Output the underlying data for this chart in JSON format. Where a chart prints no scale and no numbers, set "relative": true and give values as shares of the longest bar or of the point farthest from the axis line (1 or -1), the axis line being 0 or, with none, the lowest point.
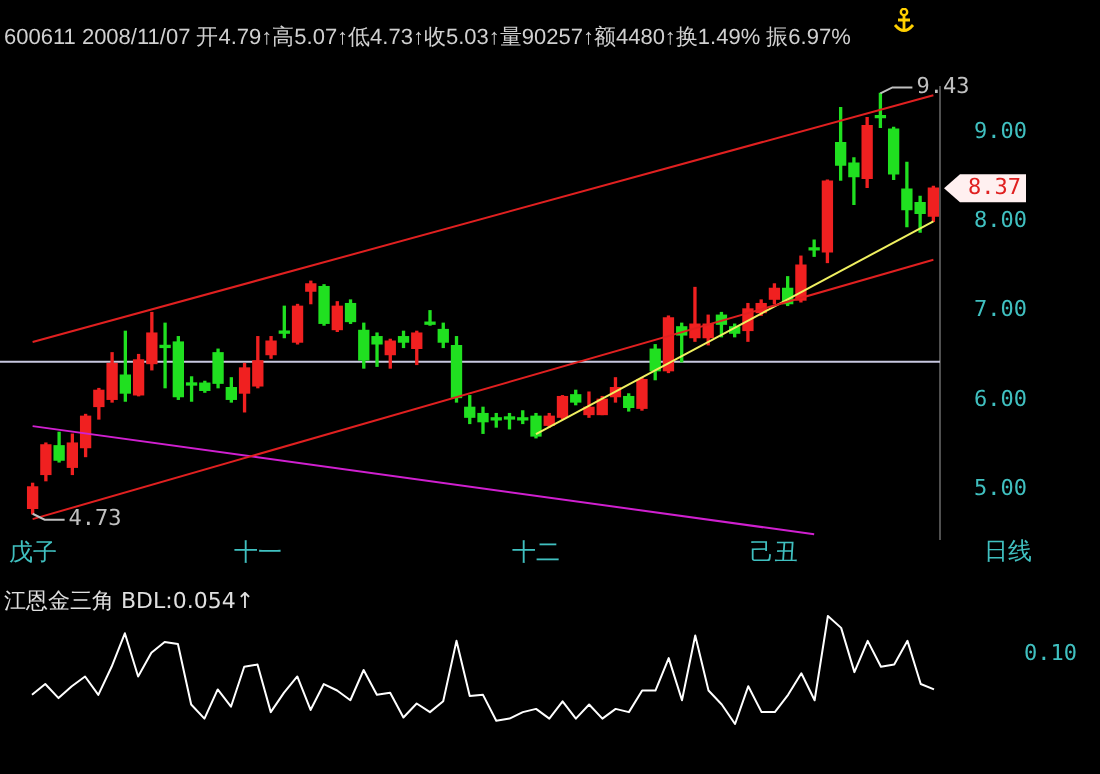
{
  "chart_data": [
    {
      "type": "candlestick",
      "subtitle": "600611 2008/11/07 开4.79↑高5.07↑低4.73↑收5.03↑量90257↑额4480↑换1.49% 振6.97%",
      "categories": [
        "戊子",
        null,
        null,
        null,
        null,
        null,
        null,
        null,
        null,
        null,
        null,
        null,
        null,
        null,
        null,
        null,
        null,
        "十一",
        null,
        null,
        null,
        null,
        null,
        null,
        null,
        null,
        null,
        null,
        null,
        null,
        null,
        null,
        null,
        null,
        null,
        null,
        null,
        null,
        "十二",
        null,
        null,
        null,
        null,
        null,
        null,
        null,
        null,
        null,
        null,
        null,
        null,
        null,
        null,
        null,
        null,
        null,
        "己丑",
        null,
        null,
        null,
        null,
        null,
        null,
        null,
        null,
        null,
        null,
        null,
        null
      ],
      "ohlc": [
        [
          4.79,
          5.07,
          4.73,
          5.03
        ],
        [
          5.17,
          5.52,
          5.1,
          5.5
        ],
        [
          5.49,
          5.64,
          5.31,
          5.33
        ],
        [
          5.25,
          5.62,
          5.17,
          5.52
        ],
        [
          5.47,
          5.84,
          5.37,
          5.82
        ],
        [
          5.93,
          6.13,
          5.79,
          6.11
        ],
        [
          6.01,
          6.53,
          5.98,
          6.41
        ],
        [
          6.28,
          6.77,
          5.99,
          6.08
        ],
        [
          6.06,
          6.51,
          6.05,
          6.45
        ],
        [
          6.41,
          6.98,
          6.34,
          6.75
        ],
        [
          6.61,
          6.86,
          6.14,
          6.59
        ],
        [
          6.65,
          6.71,
          6.01,
          6.04
        ],
        [
          6.19,
          6.26,
          5.99,
          6.17
        ],
        [
          6.19,
          6.21,
          6.09,
          6.11
        ],
        [
          6.53,
          6.57,
          6.14,
          6.19
        ],
        [
          6.14,
          6.25,
          5.98,
          6.01
        ],
        [
          6.08,
          6.41,
          5.87,
          6.36
        ],
        [
          6.16,
          6.71,
          6.14,
          6.44
        ],
        [
          6.51,
          6.71,
          6.47,
          6.66
        ],
        [
          6.77,
          7.05,
          6.7,
          6.75
        ],
        [
          6.65,
          7.07,
          6.63,
          7.05
        ],
        [
          7.22,
          7.33,
          7.08,
          7.3
        ],
        [
          7.27,
          7.29,
          6.84,
          6.86
        ],
        [
          6.79,
          7.1,
          6.77,
          7.05
        ],
        [
          7.08,
          7.12,
          6.86,
          6.88
        ],
        [
          6.78,
          6.86,
          6.36,
          6.45
        ],
        [
          6.71,
          6.75,
          6.38,
          6.63
        ],
        [
          6.51,
          6.68,
          6.36,
          6.66
        ],
        [
          6.71,
          6.77,
          6.59,
          6.65
        ],
        [
          6.58,
          6.77,
          6.4,
          6.75
        ],
        [
          6.87,
          7.0,
          6.84,
          6.85
        ],
        [
          6.79,
          6.86,
          6.59,
          6.65
        ],
        [
          6.61,
          6.71,
          5.98,
          6.03
        ],
        [
          5.92,
          6.05,
          5.74,
          5.81
        ],
        [
          5.85,
          5.92,
          5.63,
          5.76
        ],
        [
          5.8,
          5.85,
          5.7,
          5.78
        ],
        [
          5.81,
          5.85,
          5.68,
          5.79
        ],
        [
          5.8,
          5.88,
          5.74,
          5.78
        ],
        [
          5.82,
          5.85,
          5.58,
          5.6
        ],
        [
          5.72,
          5.85,
          5.7,
          5.82
        ],
        [
          5.81,
          6.05,
          5.79,
          6.04
        ],
        [
          6.06,
          6.11,
          5.95,
          5.98
        ],
        [
          5.84,
          6.09,
          5.81,
          5.92
        ],
        [
          5.84,
          6.04,
          5.84,
          6.01
        ],
        [
          6.04,
          6.25,
          5.98,
          6.14
        ],
        [
          6.04,
          6.07,
          5.88,
          5.92
        ],
        [
          5.91,
          6.25,
          5.89,
          6.23
        ],
        [
          6.57,
          6.62,
          6.23,
          6.33
        ],
        [
          6.33,
          6.94,
          6.31,
          6.92
        ],
        [
          6.82,
          6.86,
          6.43,
          6.73
        ],
        [
          6.7,
          7.26,
          6.66,
          6.85
        ],
        [
          6.7,
          6.95,
          6.62,
          6.85
        ],
        [
          6.95,
          6.98,
          6.71,
          6.85
        ],
        [
          6.82,
          6.85,
          6.71,
          6.75
        ],
        [
          6.78,
          7.08,
          6.66,
          7.02
        ],
        [
          6.98,
          7.12,
          6.95,
          7.08
        ],
        [
          7.13,
          7.3,
          7.08,
          7.25
        ],
        [
          7.25,
          7.38,
          7.06,
          7.08
        ],
        [
          7.12,
          7.61,
          7.1,
          7.51
        ],
        [
          7.7,
          7.79,
          7.61,
          7.68
        ],
        [
          7.66,
          8.46,
          7.54,
          8.45
        ],
        [
          8.88,
          9.27,
          8.46,
          8.63
        ],
        [
          8.65,
          8.71,
          8.19,
          8.5
        ],
        [
          8.48,
          9.16,
          8.38,
          9.07
        ],
        [
          9.18,
          9.43,
          9.05,
          9.16
        ],
        [
          9.03,
          9.05,
          8.47,
          8.53
        ],
        [
          8.36,
          8.66,
          7.94,
          8.13
        ],
        [
          8.21,
          8.28,
          7.88,
          8.09
        ],
        [
          8.06,
          8.39,
          8.0,
          8.37
        ]
      ],
      "colors": [
        "#f02020",
        "#f02020",
        "#20e020",
        "#f02020",
        "#f02020",
        "#f02020",
        "#f02020",
        "#20e020",
        "#f02020",
        "#f02020",
        "#20e020",
        "#20e020",
        "#20e020",
        "#20e020",
        "#20e020",
        "#20e020",
        "#f02020",
        "#f02020",
        "#f02020",
        "#20e020",
        "#f02020",
        "#f02020",
        "#20e020",
        "#f02020",
        "#20e020",
        "#20e020",
        "#20e020",
        "#f02020",
        "#20e020",
        "#f02020",
        "#20e020",
        "#20e020",
        "#20e020",
        "#20e020",
        "#20e020",
        "#20e020",
        "#20e020",
        "#20e020",
        "#20e020",
        "#f02020",
        "#f02020",
        "#20e020",
        "#f02020",
        "#f02020",
        "#f02020",
        "#20e020",
        "#f02020",
        "#20e020",
        "#f02020",
        "#20e020",
        "#f02020",
        "#f02020",
        "#20e020",
        "#20e020",
        "#f02020",
        "#f02020",
        "#f02020",
        "#20e020",
        "#f02020",
        "#20e020",
        "#f02020",
        "#20e020",
        "#20e020",
        "#f02020",
        "#20e020",
        "#20e020",
        "#20e020",
        "#20e020",
        "#f02020"
      ],
      "series": [
        {
          "type": "line",
          "color": "#e02020",
          "values": [
            6.65,
            null,
            null,
            null,
            null,
            null,
            null,
            null,
            null,
            null,
            null,
            null,
            null,
            null,
            null,
            null,
            null,
            null,
            null,
            null,
            null,
            null,
            null,
            null,
            null,
            null,
            null,
            null,
            null,
            null,
            null,
            null,
            null,
            null,
            null,
            null,
            null,
            null,
            null,
            null,
            null,
            null,
            null,
            null,
            null,
            null,
            null,
            null,
            null,
            null,
            null,
            null,
            null,
            null,
            null,
            null,
            null,
            null,
            null,
            null,
            null,
            null,
            null,
            null,
            null,
            null,
            null,
            null,
            9.41
          ]
        },
        {
          "type": "line",
          "color": "#e02020",
          "values": [
            4.67,
            null,
            null,
            null,
            null,
            null,
            null,
            null,
            null,
            null,
            null,
            null,
            null,
            null,
            null,
            null,
            null,
            null,
            null,
            null,
            null,
            null,
            null,
            null,
            null,
            null,
            null,
            null,
            null,
            null,
            null,
            null,
            null,
            null,
            null,
            null,
            null,
            null,
            null,
            null,
            null,
            null,
            null,
            null,
            null,
            null,
            null,
            null,
            null,
            null,
            null,
            null,
            null,
            null,
            null,
            null,
            null,
            null,
            null,
            null,
            null,
            null,
            null,
            null,
            null,
            null,
            null,
            null,
            7.57
          ]
        },
        {
          "type": "line",
          "color": "#d020d0",
          "values": [
            5.71,
            null,
            null,
            null,
            null,
            null,
            null,
            null,
            null,
            null,
            null,
            null,
            null,
            null,
            null,
            null,
            null,
            null,
            null,
            null,
            null,
            null,
            null,
            null,
            null,
            null,
            null,
            null,
            null,
            null,
            null,
            null,
            null,
            null,
            null,
            null,
            null,
            null,
            null,
            null,
            null,
            null,
            null,
            null,
            null,
            null,
            null,
            null,
            null,
            null,
            null,
            null,
            null,
            null,
            null,
            null,
            null,
            null,
            null,
            4.5,
            null,
            null,
            null,
            null,
            null,
            null,
            null,
            null,
            null
          ]
        },
        {
          "type": "line",
          "color": "#f0f060",
          "values": [
            null,
            null,
            null,
            null,
            null,
            null,
            null,
            null,
            null,
            null,
            null,
            null,
            null,
            null,
            null,
            null,
            null,
            null,
            null,
            null,
            null,
            null,
            null,
            null,
            null,
            null,
            null,
            null,
            null,
            null,
            null,
            null,
            null,
            null,
            null,
            null,
            null,
            null,
            5.62,
            null,
            null,
            null,
            null,
            null,
            null,
            null,
            null,
            null,
            null,
            null,
            null,
            null,
            null,
            null,
            null,
            null,
            null,
            null,
            null,
            null,
            null,
            null,
            null,
            null,
            null,
            null,
            null,
            null,
            8.0
          ]
        }
      ],
      "ref_lines": [
        {
          "axis": "y",
          "value": 6.43,
          "color": "#c8c8e0"
        }
      ],
      "ylim": [
        4.45,
        9.5
      ],
      "yticks": [
        {
          "value": 5,
          "label": "5.00"
        },
        {
          "value": 6,
          "label": "6.00"
        },
        {
          "value": 7,
          "label": "7.00"
        },
        {
          "value": 8,
          "label": "8.00"
        },
        {
          "value": 9,
          "label": "9.00"
        }
      ],
      "annotations": [
        "日线",
        "9.43",
        "4.73",
        "8.37"
      ]
    },
    {
      "type": "line",
      "title": "江恩金三角 BDL:0.054↑",
      "relative": true,
      "color": "#ffffff",
      "categories": [
        null,
        null,
        null,
        null,
        null,
        null,
        null,
        null,
        null,
        null,
        null,
        null,
        null,
        null,
        null,
        null,
        null,
        null,
        null,
        null,
        null,
        null,
        null,
        null,
        null,
        null,
        null,
        null,
        null,
        null,
        null,
        null,
        null,
        null,
        null,
        null,
        null,
        null,
        null,
        null,
        null,
        null,
        null,
        null,
        null,
        null,
        null,
        null,
        null,
        null,
        null,
        null,
        null,
        null,
        null,
        null,
        null,
        null,
        null,
        null,
        null,
        null,
        null,
        null,
        null,
        null,
        null,
        null,
        null
      ],
      "values": [
        0.27,
        0.37,
        0.24,
        0.35,
        0.44,
        0.27,
        0.53,
        0.84,
        0.44,
        0.66,
        0.76,
        0.74,
        0.18,
        0.05,
        0.32,
        0.16,
        0.53,
        0.55,
        0.11,
        0.29,
        0.44,
        0.13,
        0.37,
        0.31,
        0.22,
        0.5,
        0.27,
        0.29,
        0.06,
        0.19,
        0.11,
        0.21,
        0.77,
        0.26,
        0.27,
        0.03,
        0.05,
        0.11,
        0.14,
        0.05,
        0.21,
        0.05,
        0.18,
        0.05,
        0.14,
        0.11,
        0.31,
        0.31,
        0.61,
        0.22,
        0.82,
        0.31,
        0.18,
        0,
        0.35,
        0.11,
        0.11,
        0.27,
        0.47,
        0.22,
        1,
        0.89,
        0.48,
        0.77,
        0.53,
        0.55,
        0.77,
        0.37,
        0.32
      ],
      "annotations": [
        "0.10"
      ]
    }
  ]
}
